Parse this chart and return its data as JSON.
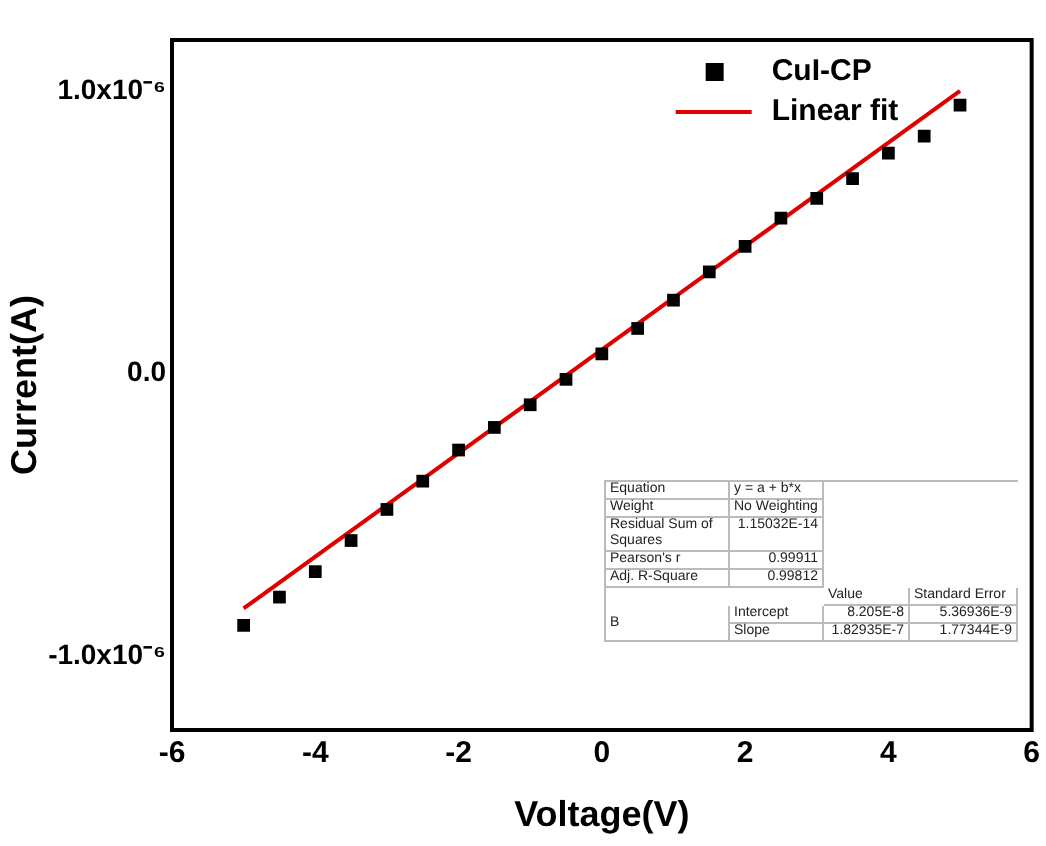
{
  "chart_data": {
    "type": "scatter",
    "xlabel": "Voltage(V)",
    "ylabel": "Current(A)",
    "xlim": [
      -6,
      6
    ],
    "xticks": [
      -6,
      -4,
      -2,
      0,
      2,
      4,
      6
    ],
    "ylim": [
      -1.26e-06,
      1.18e-06
    ],
    "yticks": [
      {
        "value": -1e-06,
        "label": "-1.0x10⁻⁶"
      },
      {
        "value": 0,
        "label": "0.0"
      },
      {
        "value": 1e-06,
        "label": "1.0x10⁻⁶"
      }
    ],
    "x": [
      -5,
      -4.5,
      -4,
      -3.5,
      -3,
      -2.5,
      -2,
      -1.5,
      -1,
      -0.5,
      0,
      0.5,
      1,
      1.5,
      2,
      2.5,
      3,
      3.5,
      4,
      4.5,
      5
    ],
    "series": [
      {
        "name": "CuI-CP",
        "color": "#000000",
        "marker": "square",
        "values": [
          -8.9e-07,
          -7.9e-07,
          -7e-07,
          -5.9e-07,
          -4.8e-07,
          -3.8e-07,
          -2.7e-07,
          -1.9e-07,
          -1.1e-07,
          -2e-08,
          7e-08,
          1.6e-07,
          2.6e-07,
          3.6e-07,
          4.5e-07,
          5.5e-07,
          6.2e-07,
          6.9e-07,
          7.8e-07,
          8.4e-07,
          9.5e-07
        ]
      },
      {
        "name": "Linear fit",
        "type": "line",
        "color": "#e00000",
        "marker": "none",
        "x": [
          -5,
          5
        ],
        "values": [
          -8.3e-07,
          1e-06
        ]
      }
    ],
    "legend": "top right",
    "grid": false,
    "annotations": [
      "Equation",
      "y = a + b*x",
      "Weight",
      "No Weighting",
      "Residual Sum of Squares",
      "1.15032E-14",
      "Pearson's r",
      "0.99911",
      "Adj. R-Square",
      "0.99812",
      "Value",
      "Standard Error",
      "B",
      "Intercept",
      "8.205E-8",
      "5.36936E-9",
      "Slope",
      "1.82935E-7",
      "1.77344E-9"
    ]
  }
}
